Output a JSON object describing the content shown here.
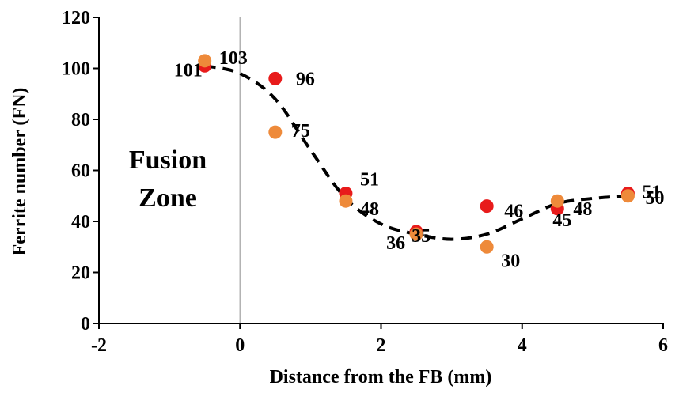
{
  "chart_data": {
    "type": "scatter",
    "title": "",
    "xlabel": "Distance from the FB (mm)",
    "ylabel": "Ferrite number (FN)",
    "xlim": [
      -2,
      6
    ],
    "ylim": [
      0,
      120
    ],
    "xticks": [
      -2,
      0,
      2,
      4,
      6
    ],
    "yticks": [
      0,
      20,
      40,
      60,
      80,
      100,
      120
    ],
    "grid": false,
    "legend": "none",
    "reference_line_x": 0,
    "annotation": [
      "Fusion",
      "Zone"
    ],
    "series": [
      {
        "color": "#e81b1b",
        "points": [
          {
            "x": -0.5,
            "y": 101,
            "label": "101"
          },
          {
            "x": 0.5,
            "y": 96,
            "label": "96"
          },
          {
            "x": 1.5,
            "y": 51,
            "label": "51"
          },
          {
            "x": 2.5,
            "y": 36,
            "label": "36"
          },
          {
            "x": 3.5,
            "y": 46,
            "label": "46"
          },
          {
            "x": 4.5,
            "y": 45,
            "label": "45"
          },
          {
            "x": 5.5,
            "y": 51,
            "label": "51"
          }
        ]
      },
      {
        "color": "#ee8a3a",
        "points": [
          {
            "x": -0.5,
            "y": 103,
            "label": "103"
          },
          {
            "x": 0.5,
            "y": 75,
            "label": "75"
          },
          {
            "x": 1.5,
            "y": 48,
            "label": "48"
          },
          {
            "x": 2.5,
            "y": 35,
            "label": "35"
          },
          {
            "x": 3.5,
            "y": 30,
            "label": "30"
          },
          {
            "x": 4.5,
            "y": 48,
            "label": "48"
          },
          {
            "x": 5.5,
            "y": 50,
            "label": "50"
          }
        ]
      }
    ],
    "trendline": {
      "style": "dashed",
      "color": "#000000",
      "points": [
        {
          "x": -0.5,
          "y": 101
        },
        {
          "x": 0.0,
          "y": 98
        },
        {
          "x": 0.5,
          "y": 88
        },
        {
          "x": 1.0,
          "y": 68
        },
        {
          "x": 1.5,
          "y": 49
        },
        {
          "x": 2.0,
          "y": 39
        },
        {
          "x": 2.5,
          "y": 35
        },
        {
          "x": 3.0,
          "y": 33
        },
        {
          "x": 3.5,
          "y": 35
        },
        {
          "x": 4.0,
          "y": 41
        },
        {
          "x": 4.5,
          "y": 47
        },
        {
          "x": 5.0,
          "y": 49
        },
        {
          "x": 5.5,
          "y": 50
        }
      ]
    }
  }
}
